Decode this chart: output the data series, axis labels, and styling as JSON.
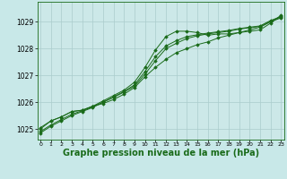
{
  "background_color": "#c8e8e8",
  "plot_bg_color": "#cce8e8",
  "grid_color": "#aacccc",
  "line_color": "#1a6b1a",
  "marker_color": "#1a6b1a",
  "xlabel": "Graphe pression niveau de la mer (hPa)",
  "yticks": [
    1025,
    1026,
    1027,
    1028,
    1029
  ],
  "xtick_labels": [
    "0",
    "1",
    "2",
    "3",
    "4",
    "5",
    "6",
    "7",
    "8",
    "9",
    "10",
    "11",
    "12",
    "13",
    "14",
    "15",
    "16",
    "17",
    "18",
    "19",
    "20",
    "21",
    "22",
    "23"
  ],
  "ylim": [
    1024.6,
    1029.75
  ],
  "xlim": [
    -0.3,
    23.3
  ],
  "series": [
    [
      1025.05,
      1025.3,
      1025.45,
      1025.65,
      1025.7,
      1025.85,
      1025.95,
      1026.1,
      1026.3,
      1026.55,
      1026.95,
      1027.3,
      1027.6,
      1027.85,
      1028.0,
      1028.15,
      1028.25,
      1028.4,
      1028.5,
      1028.6,
      1028.7,
      1028.8,
      1029.0,
      1029.15
    ],
    [
      1025.0,
      1025.3,
      1025.45,
      1025.65,
      1025.7,
      1025.85,
      1026.05,
      1026.25,
      1026.45,
      1026.75,
      1027.3,
      1027.95,
      1028.45,
      1028.65,
      1028.65,
      1028.6,
      1028.5,
      1028.55,
      1028.55,
      1028.6,
      1028.65,
      1028.7,
      1028.95,
      1029.25
    ],
    [
      1024.85,
      1025.1,
      1025.3,
      1025.5,
      1025.65,
      1025.8,
      1026.0,
      1026.2,
      1026.4,
      1026.65,
      1027.15,
      1027.7,
      1028.1,
      1028.3,
      1028.45,
      1028.52,
      1028.58,
      1028.63,
      1028.68,
      1028.75,
      1028.8,
      1028.85,
      1029.05,
      1029.2
    ],
    [
      1024.9,
      1025.15,
      1025.35,
      1025.55,
      1025.68,
      1025.83,
      1026.0,
      1026.18,
      1026.38,
      1026.6,
      1027.05,
      1027.55,
      1028.0,
      1028.2,
      1028.38,
      1028.48,
      1028.55,
      1028.6,
      1028.65,
      1028.73,
      1028.78,
      1028.83,
      1029.02,
      1029.18
    ]
  ]
}
